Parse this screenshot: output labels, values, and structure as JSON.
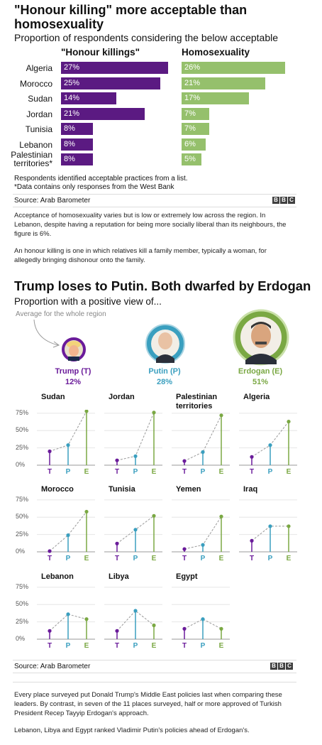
{
  "chart1": {
    "title": "\"Honour killing\" more acceptable than homosexuality",
    "subtitle": "Proportion of respondents considering the below acceptable",
    "col_honour": "\"Honour killings\"",
    "col_homo": "Homosexuality",
    "notes": [
      "Respondents identified acceptable practices from a list.",
      "*Data contains only responses from the West Bank"
    ],
    "source": "Source: Arab Barometer",
    "colors": {
      "honour": "#5b1a82",
      "homo": "#95c06c"
    }
  },
  "chart_data": [
    {
      "type": "bar",
      "categories": [
        "Algeria",
        "Morocco",
        "Sudan",
        "Jordan",
        "Tunisia",
        "Lebanon",
        "Palestinian territories*"
      ],
      "series": [
        {
          "name": "\"Honour killings\"",
          "values": [
            27,
            25,
            14,
            21,
            8,
            8,
            8
          ]
        },
        {
          "name": "Homosexuality",
          "values": [
            26,
            21,
            17,
            7,
            7,
            6,
            5
          ]
        }
      ],
      "value_labels": {
        "honour": [
          "27%",
          "25%",
          "14%",
          "21%",
          "8%",
          "8%",
          "8%"
        ],
        "homo": [
          "26%",
          "21%",
          "17%",
          "7%",
          "7%",
          "6%",
          "5%"
        ]
      },
      "title": "\"Honour killing\" more acceptable than homosexuality",
      "xlabel": "",
      "ylabel": ""
    },
    {
      "type": "line",
      "x": [
        "T",
        "P",
        "E"
      ],
      "ylim": [
        0,
        80
      ],
      "yticks": [
        "75%",
        "50%",
        "25%",
        "0%"
      ],
      "panels": [
        {
          "name": "Sudan",
          "values": [
            20,
            29,
            78
          ]
        },
        {
          "name": "Jordan",
          "values": [
            7,
            13,
            76
          ]
        },
        {
          "name": "Palestinian territories",
          "values": [
            6,
            19,
            72
          ]
        },
        {
          "name": "Algeria",
          "values": [
            12,
            29,
            63
          ]
        },
        {
          "name": "Morocco",
          "values": [
            1,
            24,
            58
          ]
        },
        {
          "name": "Tunisia",
          "values": [
            12,
            32,
            52
          ]
        },
        {
          "name": "Yemen",
          "values": [
            4,
            10,
            51
          ]
        },
        {
          "name": "Iraq",
          "values": [
            16,
            37,
            37
          ]
        },
        {
          "name": "Lebanon",
          "values": [
            12,
            36,
            29
          ]
        },
        {
          "name": "Libya",
          "values": [
            12,
            41,
            20
          ]
        },
        {
          "name": "Egypt",
          "values": [
            15,
            29,
            15
          ]
        }
      ],
      "title": "Trump loses to Putin. Both dwarfed by Erdogan"
    }
  ],
  "para1": "Acceptance of homosexuality varies but is low or extremely low across the region. In Lebanon, despite having a reputation for being more socially liberal than its neighbours, the figure is 6%.",
  "para2": "An honour killing is one in which relatives kill a family member, typically a woman, for allegedly bringing dishonour onto the family.",
  "chart2": {
    "title": "Trump loses to Putin. Both dwarfed by Erdogan",
    "subtitle": "Proportion with a positive view of...",
    "avg_note": "Average for the whole region",
    "leaders": [
      {
        "name": "Trump (T)",
        "value": "12%",
        "color": "#6a1b9a"
      },
      {
        "name": "Putin (P)",
        "value": "28%",
        "color": "#3a9fbf"
      },
      {
        "name": "Erdogan (E)",
        "value": "51%",
        "color": "#7aa843"
      }
    ],
    "source": "Source: Arab Barometer"
  },
  "para3": "Every place surveyed put Donald Trump's Middle East policies last when comparing these leaders. By contrast, in seven of the 11 places surveyed, half or more approved of Turkish President Recep Tayyip Erdogan's approach.",
  "para4": "Lebanon, Libya and Egypt ranked Vladimir Putin's policies ahead of Erdogan's.",
  "bbc": [
    "B",
    "B",
    "C"
  ]
}
